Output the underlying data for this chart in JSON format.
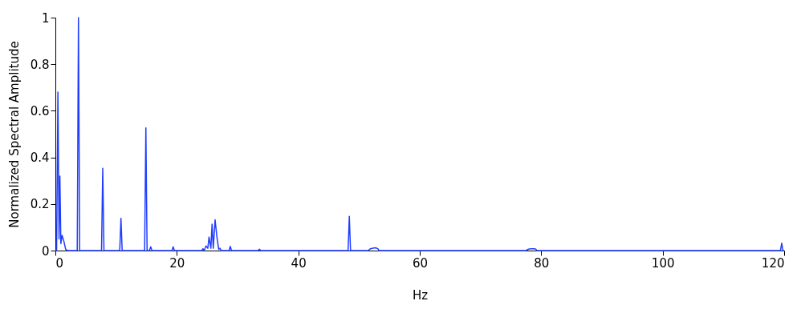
{
  "chart_data": {
    "type": "line",
    "xlabel": "Hz",
    "ylabel": "Normalized Spectral Amplitude",
    "xlim": [
      0,
      120
    ],
    "ylim": [
      0,
      1
    ],
    "xticks": [
      0,
      20,
      40,
      60,
      80,
      100,
      120
    ],
    "yticks": [
      0,
      0.2,
      0.4,
      0.6,
      0.8,
      1
    ],
    "grid": false,
    "marker": "none",
    "line_style": "solid",
    "series": [
      {
        "color": "#1f3dff",
        "x": [
          0,
          0.2,
          0.42,
          0.6,
          0.74,
          0.9,
          1.1,
          1.4,
          1.7,
          2.0,
          3.6,
          3.8,
          4.0,
          7.6,
          7.8,
          8.0,
          10.6,
          10.8,
          11.0,
          14.7,
          14.9,
          15.1,
          15.5,
          15.7,
          15.9,
          19.2,
          19.4,
          19.6,
          24.1,
          24.3,
          24.5,
          24.8,
          25.1,
          25.3,
          25.6,
          25.8,
          26.0,
          26.3,
          26.6,
          26.9,
          27.1,
          27.3,
          28.6,
          28.8,
          29.0,
          33.4,
          33.6,
          33.8,
          48.2,
          48.4,
          48.6,
          51.5,
          51.9,
          52.3,
          52.7,
          53.1,
          53.3,
          77.5,
          77.9,
          78.4,
          78.8,
          79.1,
          79.3,
          119.4,
          119.6,
          119.8,
          120
        ],
        "values": [
          0,
          0,
          0.68,
          0.05,
          0.32,
          0.03,
          0.065,
          0.04,
          0.005,
          0,
          0,
          1.0,
          0,
          0,
          0.353,
          0,
          0,
          0.138,
          0,
          0,
          0.527,
          0,
          0,
          0.016,
          0,
          0,
          0.016,
          0,
          0,
          0.008,
          0,
          0.02,
          0.01,
          0.058,
          0.01,
          0.113,
          0.01,
          0.132,
          0.058,
          0.005,
          0.01,
          0,
          0,
          0.018,
          0,
          0,
          0.006,
          0,
          0,
          0.147,
          0,
          0,
          0.008,
          0.01,
          0.012,
          0.008,
          0,
          0,
          0.006,
          0.008,
          0.008,
          0.006,
          0,
          0,
          0.032,
          0,
          0
        ]
      }
    ]
  }
}
